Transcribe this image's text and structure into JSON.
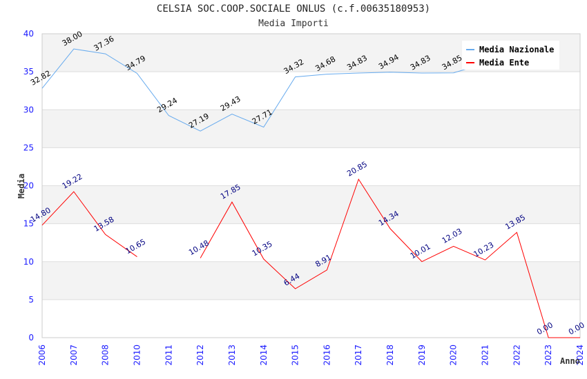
{
  "chart_data": {
    "type": "line",
    "title": "CELSIA SOC.COOP.SOCIALE ONLUS (c.f.00635180953)",
    "subtitle": "Media Importi",
    "xlabel": "Anno",
    "ylabel": "Media",
    "ylim": [
      0,
      40
    ],
    "yticks": [
      0,
      5,
      10,
      15,
      20,
      25,
      30,
      35,
      40
    ],
    "categories": [
      "2006",
      "2007",
      "2008",
      "2010",
      "2011",
      "2012",
      "2013",
      "2014",
      "2015",
      "2016",
      "2017",
      "2018",
      "2019",
      "2020",
      "2021",
      "2022",
      "2023",
      "2024"
    ],
    "legend_position": "top-right",
    "series": [
      {
        "name": "Media Nazionale",
        "color": "#66aaee",
        "label_color": "#000000",
        "values": [
          32.82,
          38.0,
          37.36,
          34.79,
          29.24,
          27.19,
          29.43,
          27.71,
          34.32,
          34.68,
          34.83,
          34.94,
          34.83,
          34.85,
          36.1,
          36.3,
          36.49,
          null
        ],
        "labels": [
          "32.82",
          "38.00",
          "37.36",
          "34.79",
          "29.24",
          "27.19",
          "29.43",
          "27.71",
          "34.32",
          "34.68",
          "34.83",
          "34.94",
          "34.83",
          "34.85",
          "",
          "",
          "",
          ""
        ]
      },
      {
        "name": "Media Ente",
        "color": "#ff0000",
        "label_color": "#000080",
        "values": [
          14.8,
          19.22,
          13.58,
          10.65,
          null,
          10.48,
          17.85,
          10.35,
          6.44,
          8.91,
          20.85,
          14.34,
          10.01,
          12.03,
          10.23,
          13.85,
          0.0,
          0.0
        ],
        "labels": [
          "14.80",
          "19.22",
          "13.58",
          "10.65",
          "",
          "10.48",
          "17.85",
          "10.35",
          "6.44",
          "8.91",
          "20.85",
          "14.34",
          "10.01",
          "12.03",
          "10.23",
          "13.85",
          "0.00",
          "0.00"
        ]
      }
    ]
  }
}
